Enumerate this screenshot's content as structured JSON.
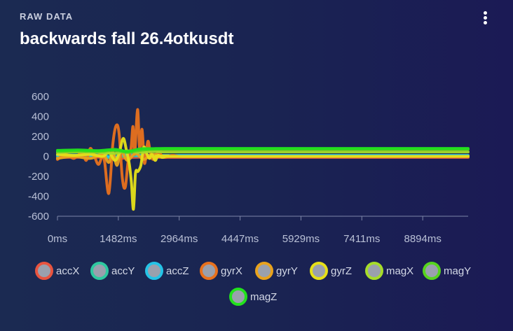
{
  "header": {
    "eyebrow": "RAW DATA",
    "title": "backwards fall 26.4otkusdt",
    "menu_icon": "more-vertical-icon"
  },
  "chart_data": {
    "type": "line",
    "title": "backwards fall 26.4otkusdt",
    "xlabel": "",
    "ylabel": "",
    "x_unit": "ms",
    "xlim": [
      0,
      10000
    ],
    "ylim": [
      -600,
      600
    ],
    "y_ticks": [
      600,
      400,
      200,
      0,
      -200,
      -400,
      -600
    ],
    "x_ticks": [
      0,
      1482,
      2964,
      4447,
      5929,
      7411,
      8894
    ],
    "x_tick_labels": [
      "0ms",
      "1482ms",
      "2964ms",
      "4447ms",
      "5929ms",
      "7411ms",
      "8894ms"
    ],
    "grid": false,
    "legend_position": "bottom",
    "series": [
      {
        "name": "accX",
        "color": "#e8543f",
        "points": [
          [
            0,
            -10
          ],
          [
            1000,
            -8
          ],
          [
            1300,
            -20
          ],
          [
            1500,
            -25
          ],
          [
            1700,
            -12
          ],
          [
            2000,
            -8
          ],
          [
            2500,
            -10
          ],
          [
            3000,
            -10
          ],
          [
            5000,
            -10
          ],
          [
            7000,
            -10
          ],
          [
            10000,
            -10
          ]
        ]
      },
      {
        "name": "accY",
        "color": "#2ec9a0",
        "points": [
          [
            0,
            5
          ],
          [
            1000,
            5
          ],
          [
            1300,
            -15
          ],
          [
            1500,
            -10
          ],
          [
            1700,
            10
          ],
          [
            2000,
            5
          ],
          [
            2500,
            5
          ],
          [
            4000,
            5
          ],
          [
            7000,
            5
          ],
          [
            10000,
            5
          ]
        ]
      },
      {
        "name": "accZ",
        "color": "#25c3e6",
        "points": [
          [
            0,
            12
          ],
          [
            1000,
            12
          ],
          [
            1300,
            -5
          ],
          [
            1500,
            5
          ],
          [
            1700,
            20
          ],
          [
            2000,
            10
          ],
          [
            2500,
            10
          ],
          [
            5000,
            10
          ],
          [
            10000,
            10
          ]
        ]
      },
      {
        "name": "gyrX",
        "color": "#e8711d",
        "points": [
          [
            0,
            -30
          ],
          [
            200,
            20
          ],
          [
            400,
            -20
          ],
          [
            600,
            40
          ],
          [
            700,
            -40
          ],
          [
            800,
            80
          ],
          [
            900,
            0
          ],
          [
            1000,
            -80
          ],
          [
            1100,
            10
          ],
          [
            1150,
            -60
          ],
          [
            1250,
            -370
          ],
          [
            1350,
            130
          ],
          [
            1430,
            310
          ],
          [
            1500,
            230
          ],
          [
            1580,
            -220
          ],
          [
            1650,
            -310
          ],
          [
            1720,
            -50
          ],
          [
            1790,
            80
          ],
          [
            1840,
            300
          ],
          [
            1880,
            20
          ],
          [
            1950,
            470
          ],
          [
            2000,
            80
          ],
          [
            2060,
            270
          ],
          [
            2120,
            -70
          ],
          [
            2200,
            150
          ],
          [
            2260,
            40
          ],
          [
            2330,
            -30
          ],
          [
            2450,
            40
          ],
          [
            2600,
            -10
          ],
          [
            2800,
            10
          ],
          [
            3200,
            -5
          ],
          [
            5000,
            0
          ],
          [
            10000,
            0
          ]
        ]
      },
      {
        "name": "gyrY",
        "color": "#e8a21d",
        "points": [
          [
            0,
            -20
          ],
          [
            400,
            0
          ],
          [
            800,
            -20
          ],
          [
            1100,
            20
          ],
          [
            1250,
            -60
          ],
          [
            1350,
            40
          ],
          [
            1450,
            -90
          ],
          [
            1550,
            60
          ],
          [
            1700,
            -40
          ],
          [
            1900,
            30
          ],
          [
            2100,
            -30
          ],
          [
            2300,
            20
          ],
          [
            2600,
            0
          ],
          [
            3000,
            0
          ],
          [
            10000,
            0
          ]
        ]
      },
      {
        "name": "gyrZ",
        "color": "#e6e018",
        "points": [
          [
            0,
            20
          ],
          [
            400,
            10
          ],
          [
            800,
            20
          ],
          [
            1100,
            0
          ],
          [
            1250,
            40
          ],
          [
            1400,
            -40
          ],
          [
            1500,
            30
          ],
          [
            1600,
            180
          ],
          [
            1680,
            60
          ],
          [
            1750,
            -80
          ],
          [
            1800,
            -260
          ],
          [
            1850,
            -530
          ],
          [
            1900,
            -170
          ],
          [
            1960,
            -150
          ],
          [
            2030,
            -90
          ],
          [
            2100,
            90
          ],
          [
            2160,
            40
          ],
          [
            2240,
            -20
          ],
          [
            2300,
            20
          ],
          [
            2380,
            -40
          ],
          [
            2450,
            10
          ],
          [
            2550,
            -10
          ],
          [
            2700,
            5
          ],
          [
            3000,
            0
          ],
          [
            10000,
            0
          ]
        ]
      },
      {
        "name": "magX",
        "color": "#a6dc2a",
        "points": [
          [
            0,
            40
          ],
          [
            500,
            45
          ],
          [
            1000,
            40
          ],
          [
            1400,
            30
          ],
          [
            1700,
            55
          ],
          [
            2000,
            40
          ],
          [
            2300,
            50
          ],
          [
            2600,
            45
          ],
          [
            3000,
            45
          ],
          [
            5000,
            45
          ],
          [
            7000,
            45
          ],
          [
            10000,
            45
          ]
        ]
      },
      {
        "name": "magY",
        "color": "#56d41d",
        "points": [
          [
            0,
            50
          ],
          [
            500,
            55
          ],
          [
            1000,
            50
          ],
          [
            1400,
            60
          ],
          [
            1700,
            40
          ],
          [
            2000,
            60
          ],
          [
            2300,
            70
          ],
          [
            2600,
            72
          ],
          [
            3000,
            72
          ],
          [
            5000,
            72
          ],
          [
            7000,
            72
          ],
          [
            10000,
            72
          ]
        ]
      },
      {
        "name": "magZ",
        "color": "#22e21d",
        "points": [
          [
            0,
            60
          ],
          [
            500,
            65
          ],
          [
            1000,
            58
          ],
          [
            1400,
            70
          ],
          [
            1700,
            50
          ],
          [
            2000,
            75
          ],
          [
            2300,
            78
          ],
          [
            2600,
            80
          ],
          [
            3000,
            80
          ],
          [
            5000,
            80
          ],
          [
            7000,
            80
          ],
          [
            10000,
            80
          ]
        ]
      }
    ]
  }
}
